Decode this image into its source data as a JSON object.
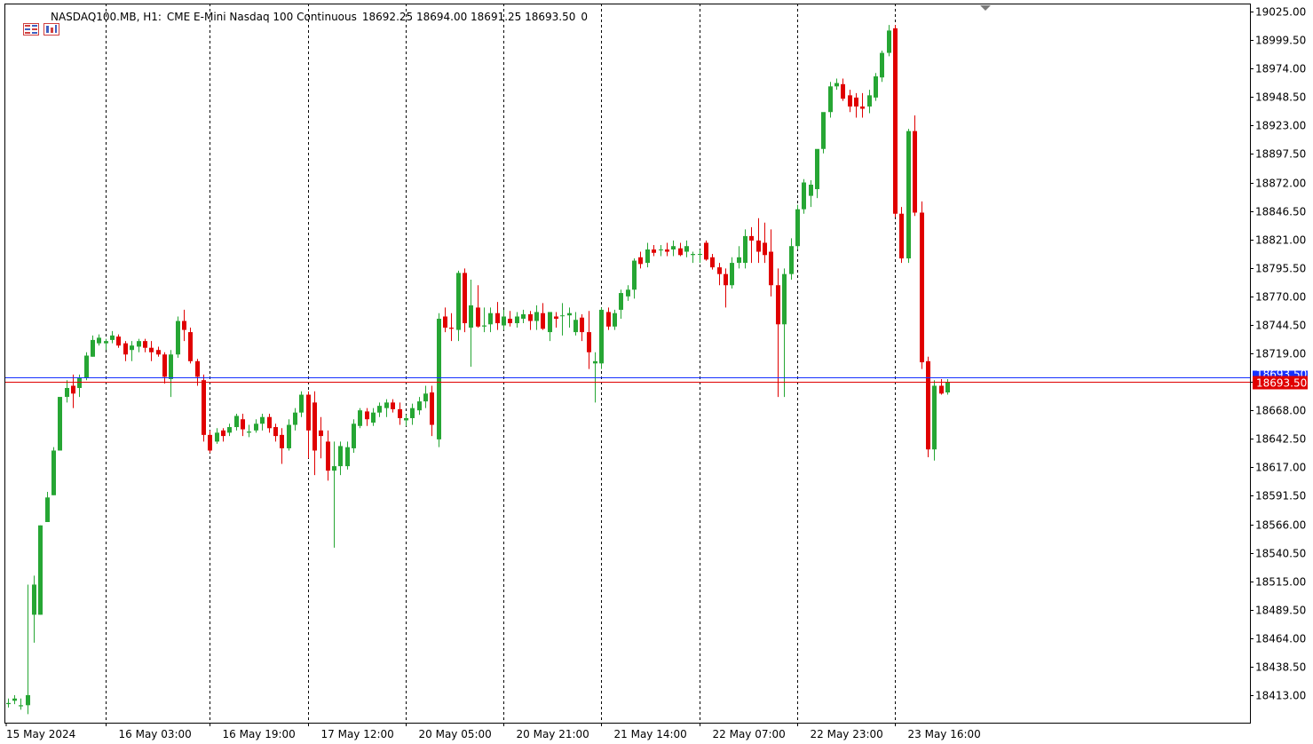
{
  "header": {
    "symbol": "NASDAQ100.MB, H1:",
    "description": "CME E-Mini Nasdaq 100 Continuous",
    "ohlc": "18692.25 18694.00 18691.25 18693.50",
    "extra": "0"
  },
  "icons": [
    "chart-menu-icon",
    "bars-icon"
  ],
  "colors": {
    "bull": "#26A634",
    "bear": "#E00000",
    "bid_line": "#E00000",
    "ask_line": "#1530FF",
    "grid": "#000000",
    "text": "#000000"
  },
  "price_labels": {
    "bid": "18693.50",
    "ask": "18693.50"
  },
  "chart_data": {
    "type": "candlestick",
    "title": "NASDAQ100.MB, H1:  CME E-Mini Nasdaq 100 Continuous",
    "ylim": [
      18393.5,
      19031.8
    ],
    "grid": "vertical dashed at date labels",
    "y_ticks": [
      "19025.00",
      "18999.50",
      "18974.00",
      "18948.50",
      "18923.00",
      "18897.50",
      "18872.00",
      "18846.50",
      "18821.00",
      "18795.50",
      "18770.00",
      "18744.50",
      "18719.00",
      "18693.50",
      "18668.00",
      "18642.50",
      "18617.00",
      "18591.50",
      "18566.00",
      "18540.50",
      "18515.00",
      "18489.50",
      "18464.00",
      "18438.50",
      "18413.00"
    ],
    "x_labels": [
      "15 May 2024",
      "16 May 03:00",
      "16 May 19:00",
      "17 May 12:00",
      "20 May 05:00",
      "20 May 21:00",
      "21 May 14:00",
      "22 May 07:00",
      "22 May 23:00",
      "23 May 16:00"
    ],
    "x_label_bar_index": [
      0,
      15,
      31,
      46,
      61,
      76,
      91,
      106,
      121,
      136
    ],
    "vertical_grid_bar_index": [
      15,
      31,
      46,
      61,
      76,
      91,
      106,
      121,
      136
    ],
    "candles": [
      [
        18405,
        18410,
        18402,
        18406
      ],
      [
        18408,
        18413,
        18405,
        18410
      ],
      [
        18403,
        18410,
        18400,
        18404
      ],
      [
        18404,
        18512,
        18396,
        18413
      ],
      [
        18485,
        18520,
        18460,
        18512
      ],
      [
        18485,
        18565,
        18485,
        18565
      ],
      [
        18568,
        18595,
        18568,
        18590
      ],
      [
        18592,
        18635,
        18592,
        18632
      ],
      [
        18632,
        18680,
        18632,
        18680
      ],
      [
        18680,
        18695,
        18675,
        18688
      ],
      [
        18690,
        18700,
        18670,
        18683
      ],
      [
        18688,
        18700,
        18680,
        18697
      ],
      [
        18697,
        18720,
        18695,
        18717
      ],
      [
        18716,
        18735,
        18716,
        18731
      ],
      [
        18728,
        18736,
        18726,
        18733
      ],
      [
        18728,
        18732,
        18722,
        18730
      ],
      [
        18731,
        18739,
        18728,
        18735
      ],
      [
        18734,
        18736,
        18724,
        18726
      ],
      [
        18728,
        18730,
        18712,
        18718
      ],
      [
        18722,
        18730,
        18712,
        18726
      ],
      [
        18725,
        18732,
        18720,
        18730
      ],
      [
        18730,
        18732,
        18720,
        18724
      ],
      [
        18724,
        18730,
        18712,
        18720
      ],
      [
        18722,
        18725,
        18716,
        18718
      ],
      [
        18718,
        18720,
        18692,
        18698
      ],
      [
        18696,
        18722,
        18680,
        18718
      ],
      [
        18718,
        18752,
        18715,
        18748
      ],
      [
        18748,
        18758,
        18730,
        18740
      ],
      [
        18738,
        18742,
        18710,
        18712
      ],
      [
        18712,
        18714,
        18690,
        18698
      ],
      [
        18695,
        18700,
        18640,
        18646
      ],
      [
        18646,
        18650,
        18630,
        18632
      ],
      [
        18640,
        18652,
        18638,
        18648
      ],
      [
        18650,
        18652,
        18640,
        18645
      ],
      [
        18648,
        18656,
        18645,
        18653
      ],
      [
        18653,
        18665,
        18650,
        18663
      ],
      [
        18660,
        18665,
        18645,
        18651
      ],
      [
        18648,
        18655,
        18644,
        18649
      ],
      [
        18650,
        18660,
        18648,
        18656
      ],
      [
        18656,
        18665,
        18650,
        18662
      ],
      [
        18662,
        18665,
        18648,
        18652
      ],
      [
        18653,
        18656,
        18640,
        18645
      ],
      [
        18646,
        18652,
        18620,
        18634
      ],
      [
        18634,
        18660,
        18632,
        18655
      ],
      [
        18655,
        18670,
        18650,
        18666
      ],
      [
        18666,
        18685,
        18662,
        18682
      ],
      [
        18682,
        18685,
        18625,
        18650
      ],
      [
        18675,
        18685,
        18610,
        18632
      ],
      [
        18650,
        18662,
        18625,
        18645
      ],
      [
        18640,
        18650,
        18605,
        18614
      ],
      [
        18614,
        18640,
        18545,
        18618
      ],
      [
        18618,
        18640,
        18610,
        18636
      ],
      [
        18618,
        18640,
        18615,
        18635
      ],
      [
        18634,
        18660,
        18630,
        18656
      ],
      [
        18654,
        18670,
        18652,
        18668
      ],
      [
        18667,
        18670,
        18654,
        18660
      ],
      [
        18657,
        18670,
        18654,
        18666
      ],
      [
        18666,
        18675,
        18662,
        18672
      ],
      [
        18670,
        18678,
        18662,
        18675
      ],
      [
        18675,
        18678,
        18666,
        18669
      ],
      [
        18669,
        18675,
        18655,
        18661
      ],
      [
        18659,
        18664,
        18654,
        18661
      ],
      [
        18661,
        18674,
        18655,
        18670
      ],
      [
        18668,
        18680,
        18664,
        18676
      ],
      [
        18676,
        18690,
        18670,
        18683
      ],
      [
        18684,
        18690,
        18645,
        18655
      ],
      [
        18642,
        18755,
        18635,
        18750
      ],
      [
        18752,
        18760,
        18738,
        18742
      ],
      [
        18742,
        18755,
        18730,
        18741
      ],
      [
        18740,
        18793,
        18730,
        18791
      ],
      [
        18791,
        18795,
        18738,
        18746
      ],
      [
        18742,
        18785,
        18707,
        18762
      ],
      [
        18760,
        18780,
        18742,
        18743
      ],
      [
        18743,
        18760,
        18738,
        18744
      ],
      [
        18745,
        18760,
        18738,
        18755
      ],
      [
        18755,
        18765,
        18740,
        18746
      ],
      [
        18744,
        18758,
        18740,
        18752
      ],
      [
        18750,
        18757,
        18743,
        18746
      ],
      [
        18746,
        18756,
        18742,
        18752
      ],
      [
        18750,
        18758,
        18746,
        18754
      ],
      [
        18754,
        18757,
        18740,
        18748
      ],
      [
        18748,
        18762,
        18740,
        18756
      ],
      [
        18755,
        18764,
        18740,
        18741
      ],
      [
        18738,
        18756,
        18730,
        18756
      ],
      [
        18752,
        18756,
        18742,
        18750
      ],
      [
        18753,
        18764,
        18735,
        18753
      ],
      [
        18753,
        18760,
        18742,
        18755
      ],
      [
        18738,
        18756,
        18735,
        18749
      ],
      [
        18751,
        18754,
        18730,
        18738
      ],
      [
        18738,
        18757,
        18705,
        18720
      ],
      [
        18710,
        18720,
        18675,
        18712
      ],
      [
        18710,
        18760,
        18705,
        18758
      ],
      [
        18756,
        18760,
        18740,
        18743
      ],
      [
        18743,
        18758,
        18740,
        18755
      ],
      [
        18758,
        18776,
        18750,
        18773
      ],
      [
        18770,
        18780,
        18766,
        18776
      ],
      [
        18776,
        18804,
        18768,
        18802
      ],
      [
        18805,
        18810,
        18795,
        18799
      ],
      [
        18800,
        18818,
        18796,
        18812
      ],
      [
        18812,
        18816,
        18806,
        18809
      ],
      [
        18812,
        18816,
        18806,
        18812
      ],
      [
        18812,
        18818,
        18806,
        18810
      ],
      [
        18812,
        18820,
        18806,
        18815
      ],
      [
        18813,
        18818,
        18806,
        18807
      ],
      [
        18810,
        18820,
        18805,
        18815
      ],
      [
        18807,
        18810,
        18800,
        18808
      ],
      [
        18808,
        18812,
        18800,
        18808
      ],
      [
        18818,
        18820,
        18802,
        18803
      ],
      [
        18805,
        18808,
        18794,
        18796
      ],
      [
        18796,
        18800,
        18780,
        18790
      ],
      [
        18790,
        18795,
        18760,
        18780
      ],
      [
        18780,
        18805,
        18777,
        18800
      ],
      [
        18800,
        18815,
        18795,
        18805
      ],
      [
        18800,
        18830,
        18795,
        18824
      ],
      [
        18824,
        18832,
        18800,
        18820
      ],
      [
        18820,
        18840,
        18800,
        18810
      ],
      [
        18818,
        18836,
        18800,
        18807
      ],
      [
        18810,
        18830,
        18770,
        18780
      ],
      [
        18780,
        18795,
        18680,
        18745
      ],
      [
        18745,
        18795,
        18680,
        18790
      ],
      [
        18790,
        18822,
        18785,
        18815
      ],
      [
        18815,
        18852,
        18812,
        18848
      ],
      [
        18848,
        18875,
        18844,
        18872
      ],
      [
        18860,
        18874,
        18850,
        18870
      ],
      [
        18866,
        18900,
        18858,
        18902
      ],
      [
        18902,
        18932,
        18898,
        18935
      ],
      [
        18935,
        18962,
        18930,
        18958
      ],
      [
        18958,
        18965,
        18955,
        18961
      ],
      [
        18960,
        18965,
        18945,
        18947
      ],
      [
        18950,
        18955,
        18935,
        18940
      ],
      [
        18948,
        18952,
        18930,
        18940
      ],
      [
        18940,
        18952,
        18930,
        18938
      ],
      [
        18940,
        18955,
        18934,
        18950
      ],
      [
        18948,
        18970,
        18945,
        18967
      ],
      [
        18966,
        18990,
        18962,
        18988
      ],
      [
        18988,
        19013,
        18985,
        19008
      ],
      [
        19010,
        19013,
        18841,
        18844
      ],
      [
        18844,
        18850,
        18800,
        18804
      ],
      [
        18804,
        18920,
        18800,
        18918
      ],
      [
        18918,
        18932,
        18842,
        18845
      ],
      [
        18845,
        18855,
        18705,
        18711
      ],
      [
        18712,
        18716,
        18626,
        18633
      ],
      [
        18633,
        18695,
        18623,
        18690
      ],
      [
        18690,
        18696,
        18682,
        18683
      ],
      [
        18684,
        18696,
        18682,
        18693
      ]
    ]
  }
}
